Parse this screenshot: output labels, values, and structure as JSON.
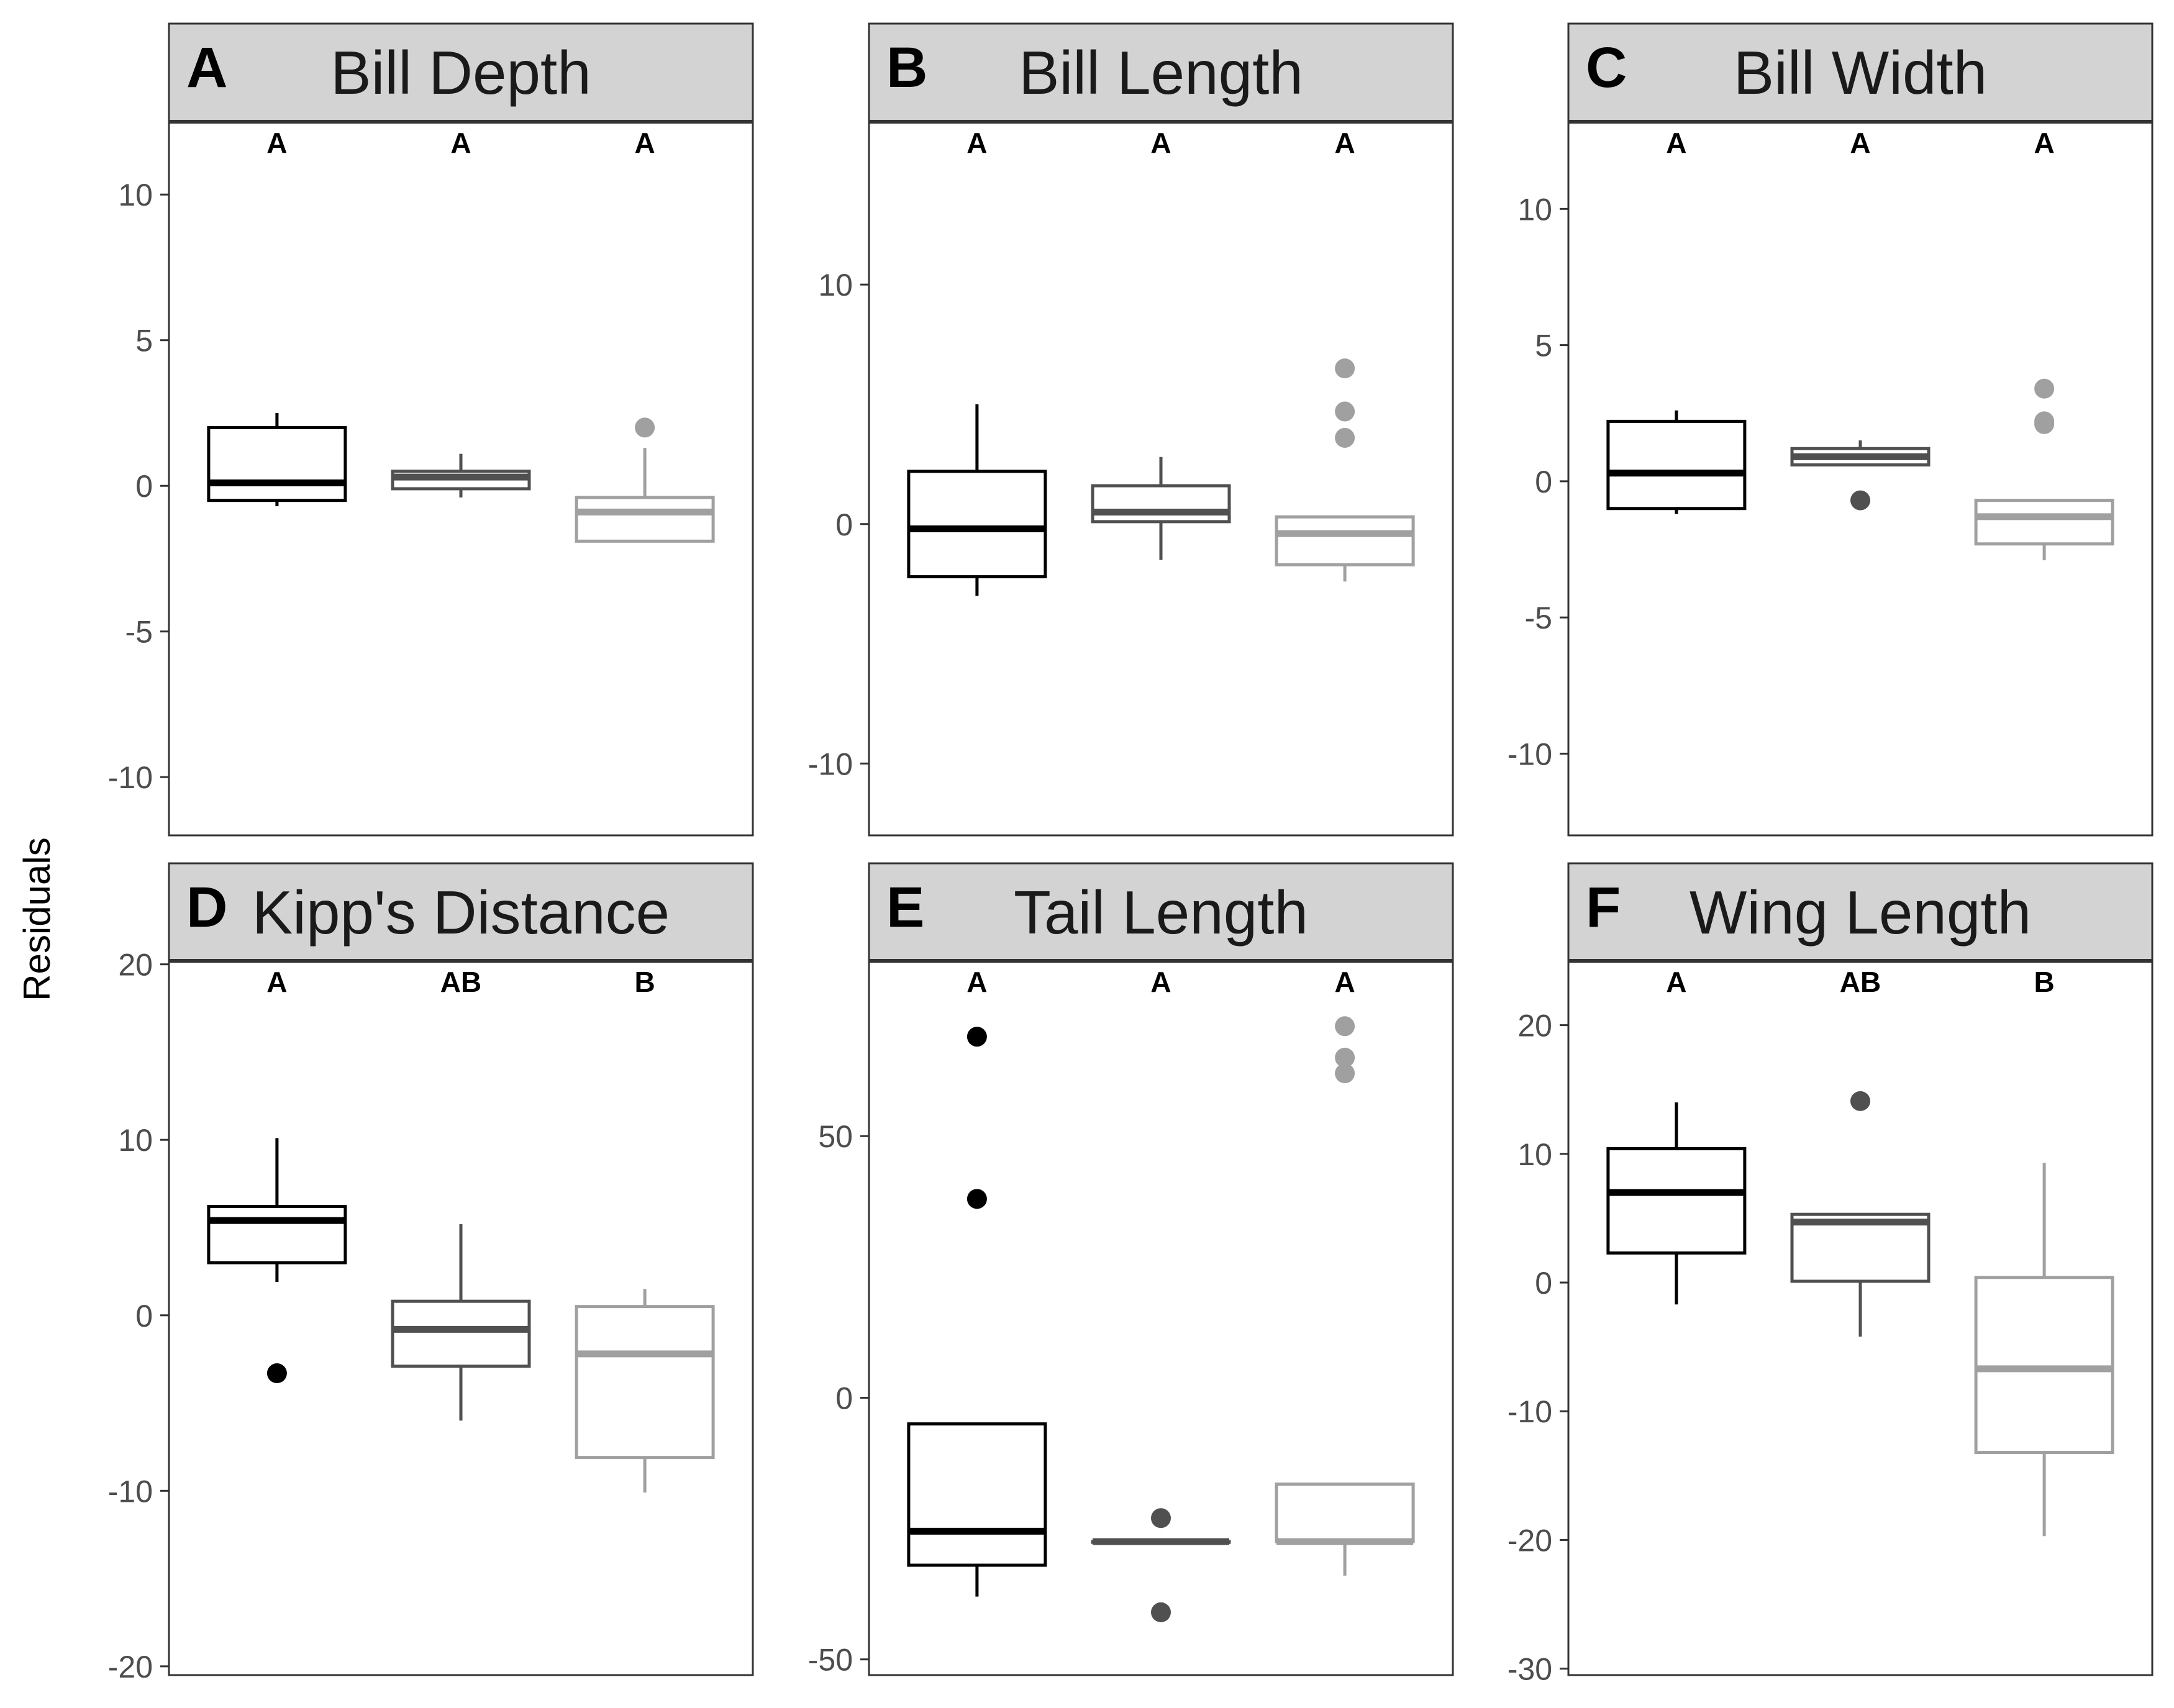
{
  "figure": {
    "ylabel": "Residuals",
    "colors": {
      "group1": "#000000",
      "group2": "#505050",
      "group3": "#A0A0A0",
      "strip": "#D3D3D3",
      "frame": "#333333",
      "tick_text": "#4D4D4D"
    }
  },
  "chart_data": [
    {
      "type": "box",
      "panel_letter": "A",
      "title": "Bill Depth",
      "ylabel": "Residuals",
      "ylim": [
        -12,
        12.5
      ],
      "yticks": [
        -10,
        -5,
        0,
        5,
        10
      ],
      "yticklabels": [
        "-10",
        "-5",
        "0",
        "5",
        "10"
      ],
      "group_letters": [
        "A",
        "A",
        "A"
      ],
      "groups": [
        {
          "color": "#000000",
          "lower_whisker": -0.7,
          "q1": -0.5,
          "median": 0.1,
          "q3": 2.0,
          "upper_whisker": 2.5,
          "outliers": []
        },
        {
          "color": "#505050",
          "lower_whisker": -0.4,
          "q1": -0.1,
          "median": 0.3,
          "q3": 0.5,
          "upper_whisker": 1.1,
          "outliers": []
        },
        {
          "color": "#A0A0A0",
          "lower_whisker": -1.9,
          "q1": -1.9,
          "median": -0.9,
          "q3": -0.4,
          "upper_whisker": 1.3,
          "outliers": [
            2.0
          ]
        }
      ]
    },
    {
      "type": "box",
      "panel_letter": "B",
      "title": "Bill Length",
      "ylabel": "Residuals",
      "ylim": [
        -13,
        16.8
      ],
      "yticks": [
        -10,
        0,
        10
      ],
      "yticklabels": [
        "-10",
        "0",
        "10"
      ],
      "group_letters": [
        "A",
        "A",
        "A"
      ],
      "groups": [
        {
          "color": "#000000",
          "lower_whisker": -3.0,
          "q1": -2.2,
          "median": -0.2,
          "q3": 2.2,
          "upper_whisker": 5.0,
          "outliers": []
        },
        {
          "color": "#505050",
          "lower_whisker": -1.5,
          "q1": 0.1,
          "median": 0.5,
          "q3": 1.6,
          "upper_whisker": 2.8,
          "outliers": []
        },
        {
          "color": "#A0A0A0",
          "lower_whisker": -2.4,
          "q1": -1.7,
          "median": -0.4,
          "q3": 0.3,
          "upper_whisker": 0.3,
          "outliers": [
            3.6,
            4.7,
            6.5
          ]
        }
      ]
    },
    {
      "type": "box",
      "panel_letter": "C",
      "title": "Bill Width",
      "ylabel": "Residuals",
      "ylim": [
        -13,
        13.2
      ],
      "yticks": [
        -10,
        -5,
        0,
        5,
        10
      ],
      "yticklabels": [
        "-10",
        "-5",
        "0",
        "5",
        "10"
      ],
      "group_letters": [
        "A",
        "A",
        "A"
      ],
      "groups": [
        {
          "color": "#000000",
          "lower_whisker": -1.2,
          "q1": -1.0,
          "median": 0.3,
          "q3": 2.2,
          "upper_whisker": 2.6,
          "outliers": []
        },
        {
          "color": "#505050",
          "lower_whisker": 0.6,
          "q1": 0.6,
          "median": 0.9,
          "q3": 1.2,
          "upper_whisker": 1.5,
          "outliers": [
            -0.7
          ]
        },
        {
          "color": "#A0A0A0",
          "lower_whisker": -2.9,
          "q1": -2.3,
          "median": -1.3,
          "q3": -0.7,
          "upper_whisker": -0.7,
          "outliers": [
            2.1,
            2.2,
            3.4
          ]
        }
      ]
    },
    {
      "type": "box",
      "panel_letter": "D",
      "title": "Kipp's Distance",
      "ylabel": "Residuals",
      "ylim": [
        -20.5,
        20.2
      ],
      "yticks": [
        -20,
        -10,
        0,
        10,
        20
      ],
      "yticklabels": [
        "-20",
        "-10",
        "0",
        "10",
        "20"
      ],
      "group_letters": [
        "A",
        "AB",
        "B"
      ],
      "groups": [
        {
          "color": "#000000",
          "lower_whisker": 1.9,
          "q1": 3.0,
          "median": 5.4,
          "q3": 6.2,
          "upper_whisker": 10.1,
          "outliers": [
            -3.3
          ]
        },
        {
          "color": "#505050",
          "lower_whisker": -6.0,
          "q1": -2.9,
          "median": -0.8,
          "q3": 0.8,
          "upper_whisker": 5.2,
          "outliers": []
        },
        {
          "color": "#A0A0A0",
          "lower_whisker": -10.1,
          "q1": -8.1,
          "median": -2.2,
          "q3": 0.5,
          "upper_whisker": 1.5,
          "outliers": []
        }
      ]
    },
    {
      "type": "box",
      "panel_letter": "E",
      "title": "Tail Length",
      "ylabel": "Residuals",
      "ylim": [
        -53,
        83.5
      ],
      "yticks": [
        -50,
        0,
        50
      ],
      "yticklabels": [
        "-50",
        "0",
        "50"
      ],
      "group_letters": [
        "A",
        "A",
        "A"
      ],
      "groups": [
        {
          "color": "#000000",
          "lower_whisker": -38.0,
          "q1": -32.0,
          "median": -25.5,
          "q3": -5.0,
          "upper_whisker": -5.0,
          "outliers": [
            38.0,
            69.0
          ]
        },
        {
          "color": "#505050",
          "lower_whisker": -27.5,
          "q1": -27.5,
          "median": -27.5,
          "q3": -27.5,
          "upper_whisker": -27.5,
          "outliers": [
            -41.0,
            -23.0
          ]
        },
        {
          "color": "#A0A0A0",
          "lower_whisker": -34.0,
          "q1": -27.5,
          "median": -27.5,
          "q3": -16.5,
          "upper_whisker": -16.5,
          "outliers": [
            62.0,
            65.0,
            71.0
          ]
        }
      ]
    },
    {
      "type": "box",
      "panel_letter": "F",
      "title": "Wing Length",
      "ylabel": "Residuals",
      "ylim": [
        -30.5,
        25
      ],
      "yticks": [
        -30,
        -20,
        -10,
        0,
        10,
        20
      ],
      "yticklabels": [
        "-30",
        "-20",
        "-10",
        "0",
        "10",
        "20"
      ],
      "group_letters": [
        "A",
        "AB",
        "B"
      ],
      "groups": [
        {
          "color": "#000000",
          "lower_whisker": -1.7,
          "q1": 2.3,
          "median": 7.0,
          "q3": 10.4,
          "upper_whisker": 14.0,
          "outliers": []
        },
        {
          "color": "#505050",
          "lower_whisker": -4.2,
          "q1": 0.1,
          "median": 4.7,
          "q3": 5.3,
          "upper_whisker": 5.3,
          "outliers": [
            14.1
          ]
        },
        {
          "color": "#A0A0A0",
          "lower_whisker": -19.7,
          "q1": -13.2,
          "median": -6.7,
          "q3": 0.4,
          "upper_whisker": 9.3,
          "outliers": []
        }
      ]
    }
  ]
}
